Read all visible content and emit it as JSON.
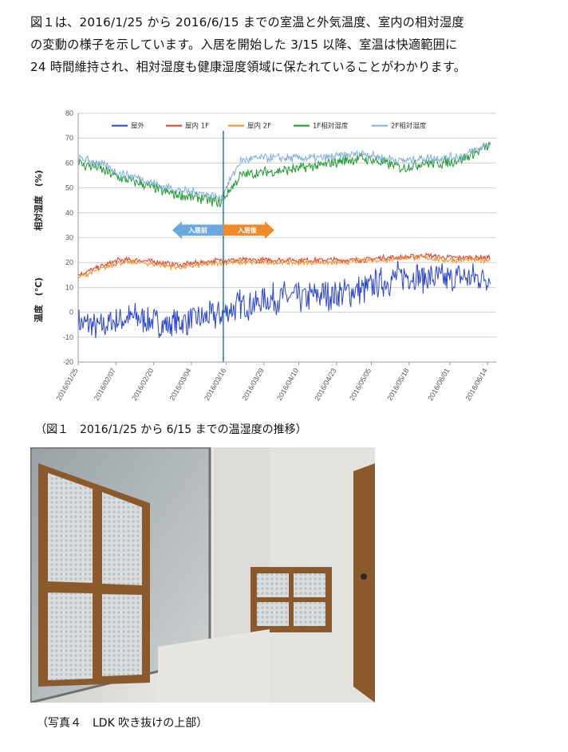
{
  "paragraph": {
    "lines": [
      "図１は、2016/1/25 から 2016/6/15 までの室温と外気温度、室内の相対湿度",
      "の変動の様子を示しています。入居を開始した 3/15 以降、室温は快適範囲に",
      "24 時間維持され、相対湿度も健康湿度領域に保たれていることがわかります。"
    ]
  },
  "figure1": {
    "caption": "（図１　2016/1/25 から 6/15 までの温湿度の推移）"
  },
  "photo4": {
    "caption": "（写真４　LDK 吹き抜けの上部）"
  },
  "chart_data": {
    "type": "line",
    "title": "",
    "ylabel_humidity": "相対湿度　(%)",
    "ylabel_temp": "温度　(℃)",
    "ylim": [
      -20,
      80
    ],
    "yticks": [
      -20,
      -10,
      0,
      10,
      20,
      30,
      40,
      50,
      60,
      70,
      80
    ],
    "x_range": [
      "2016/01/25",
      "2016/06/17"
    ],
    "xtick_labels": [
      "2016/01/25",
      "2016/02/07",
      "2016/02/20",
      "2016/03/04",
      "2016/03/16",
      "2016/03/29",
      "2016/04/10",
      "2016/04/23",
      "2016/05/05",
      "2016/05/18",
      "2016/06/01",
      "2016/06/14"
    ],
    "move_in_date": "2016/03/15",
    "annotations": {
      "before": "入居前",
      "after": "入居後"
    },
    "legend_position": "top",
    "grid": true,
    "series": [
      {
        "name": "屋外",
        "color": "#2a44d6",
        "x": [
          "2016/01/25",
          "2016/02/01",
          "2016/02/08",
          "2016/02/15",
          "2016/02/22",
          "2016/02/29",
          "2016/03/07",
          "2016/03/14",
          "2016/03/21",
          "2016/03/28",
          "2016/04/04",
          "2016/04/11",
          "2016/04/18",
          "2016/04/25",
          "2016/05/02",
          "2016/05/09",
          "2016/05/16",
          "2016/05/23",
          "2016/05/30",
          "2016/06/06",
          "2016/06/15"
        ],
        "values": [
          -4,
          -6,
          -3,
          -2,
          -5,
          -4,
          -3,
          -1,
          3,
          4,
          6,
          6,
          7,
          8,
          9,
          12,
          15,
          14,
          13,
          14,
          14
        ],
        "amplitude": 7
      },
      {
        "name": "屋内 1F",
        "color": "#e23b2e",
        "x": [
          "2016/01/25",
          "2016/02/01",
          "2016/02/08",
          "2016/02/15",
          "2016/02/22",
          "2016/02/29",
          "2016/03/07",
          "2016/03/14",
          "2016/03/21",
          "2016/03/28",
          "2016/04/04",
          "2016/04/11",
          "2016/04/18",
          "2016/04/25",
          "2016/05/02",
          "2016/05/09",
          "2016/05/16",
          "2016/05/23",
          "2016/05/30",
          "2016/06/06",
          "2016/06/15"
        ],
        "values": [
          15,
          18,
          21,
          21,
          20,
          19,
          20,
          21,
          21,
          21,
          21,
          21,
          21,
          21,
          21,
          22,
          22,
          23,
          22,
          22,
          22
        ],
        "amplitude": 1.2
      },
      {
        "name": "屋内 2F",
        "color": "#f2922c",
        "x": [
          "2016/01/25",
          "2016/02/01",
          "2016/02/08",
          "2016/02/15",
          "2016/02/22",
          "2016/02/29",
          "2016/03/07",
          "2016/03/14",
          "2016/03/21",
          "2016/03/28",
          "2016/04/04",
          "2016/04/11",
          "2016/04/18",
          "2016/04/25",
          "2016/05/02",
          "2016/05/09",
          "2016/05/16",
          "2016/05/23",
          "2016/05/30",
          "2016/06/06",
          "2016/06/15"
        ],
        "values": [
          14,
          17,
          20,
          20,
          19,
          18,
          19,
          20,
          20,
          20,
          20,
          20,
          20,
          20,
          21,
          21,
          22,
          22,
          21,
          21,
          21
        ],
        "amplitude": 1.2
      },
      {
        "name": "1F相対湿度",
        "color": "#1e9a2c",
        "x": [
          "2016/01/25",
          "2016/02/01",
          "2016/02/08",
          "2016/02/15",
          "2016/02/22",
          "2016/02/29",
          "2016/03/07",
          "2016/03/14",
          "2016/03/21",
          "2016/03/28",
          "2016/04/04",
          "2016/04/11",
          "2016/04/18",
          "2016/04/25",
          "2016/05/02",
          "2016/05/09",
          "2016/05/16",
          "2016/05/23",
          "2016/05/30",
          "2016/06/06",
          "2016/06/15"
        ],
        "values": [
          60,
          58,
          54,
          52,
          49,
          47,
          46,
          44,
          55,
          56,
          57,
          58,
          59,
          61,
          62,
          60,
          58,
          60,
          60,
          62,
          67
        ],
        "amplitude": 2.5
      },
      {
        "name": "2F相対湿度",
        "color": "#7fb0dc",
        "x": [
          "2016/01/25",
          "2016/02/01",
          "2016/02/08",
          "2016/02/15",
          "2016/02/22",
          "2016/02/29",
          "2016/03/07",
          "2016/03/14",
          "2016/03/21",
          "2016/03/28",
          "2016/04/04",
          "2016/04/11",
          "2016/04/18",
          "2016/04/25",
          "2016/05/02",
          "2016/05/09",
          "2016/05/16",
          "2016/05/23",
          "2016/05/30",
          "2016/06/06",
          "2016/06/15"
        ],
        "values": [
          62,
          60,
          56,
          54,
          51,
          49,
          48,
          46,
          61,
          62,
          62,
          62,
          62,
          63,
          64,
          62,
          61,
          62,
          62,
          63,
          68
        ],
        "amplitude": 2.0
      }
    ]
  }
}
